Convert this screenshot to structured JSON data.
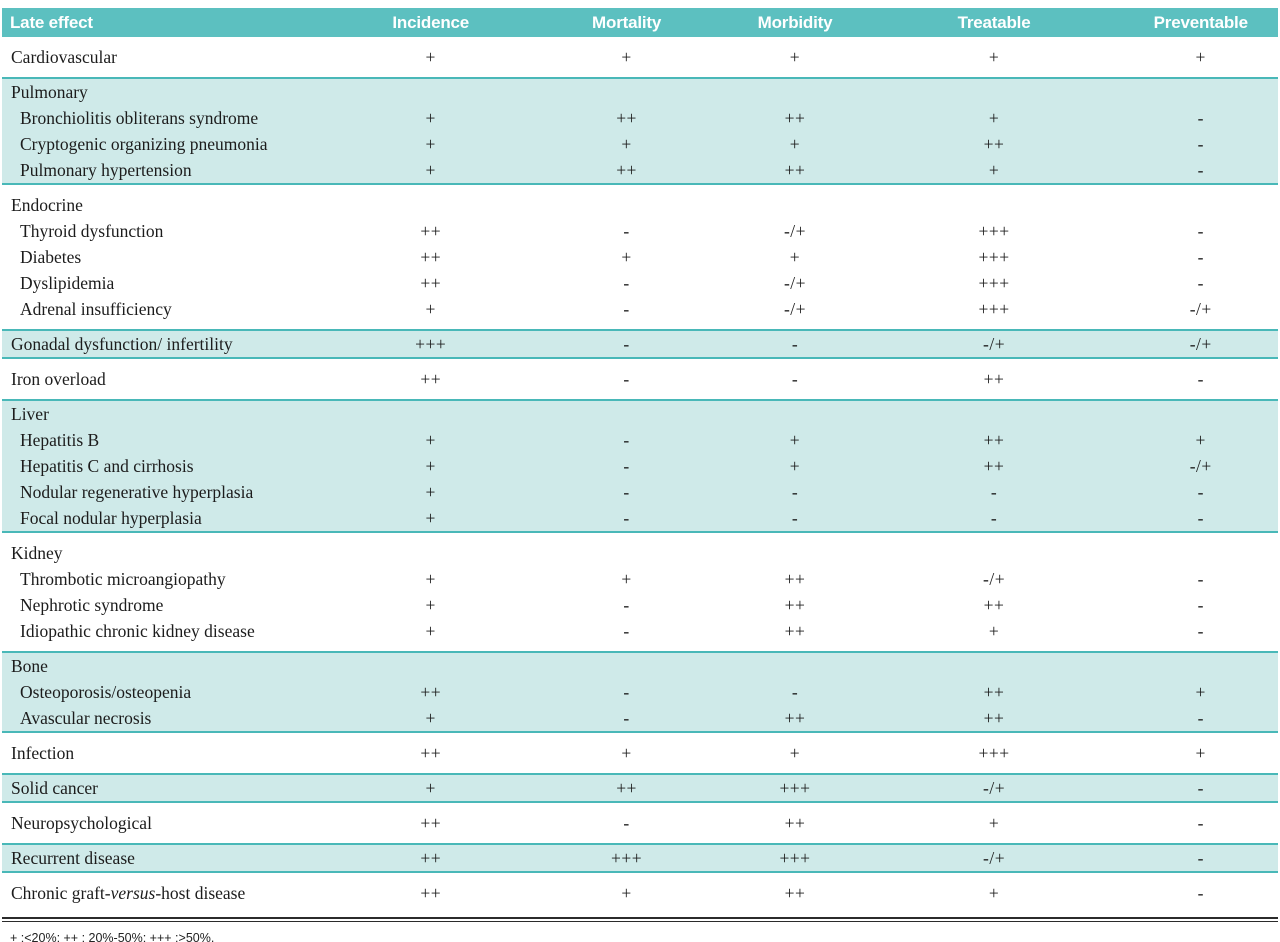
{
  "colors": {
    "header_teal": "#5cc0c0",
    "row_teal": "#cfeae9",
    "rule_teal": "#49b8b8",
    "text": "#1c1c1c",
    "header_text": "#ffffff"
  },
  "table": {
    "columns": [
      "Late effect",
      "Incidence",
      "Mortality",
      "Morbidity",
      "Treatable",
      "Preventable"
    ],
    "sections": [
      {
        "bg": "white",
        "rows": [
          {
            "label": "Cardiovascular",
            "indent": false,
            "values": [
              "+",
              "+",
              "+",
              "+",
              "+"
            ]
          }
        ]
      },
      {
        "bg": "teal",
        "rows": [
          {
            "label": "Pulmonary",
            "indent": false
          },
          {
            "label": "Bronchiolitis obliterans syndrome",
            "indent": true,
            "values": [
              "+",
              "++",
              "++",
              "+",
              "-"
            ]
          },
          {
            "label": "Cryptogenic organizing pneumonia",
            "indent": true,
            "values": [
              "+",
              "+",
              "+",
              "++",
              "-"
            ]
          },
          {
            "label": "Pulmonary hypertension",
            "indent": true,
            "values": [
              "+",
              "++",
              "++",
              "+",
              "-"
            ]
          }
        ]
      },
      {
        "bg": "white",
        "rows": [
          {
            "label": "Endocrine",
            "indent": false
          },
          {
            "label": "Thyroid dysfunction",
            "indent": true,
            "values": [
              "++",
              "-",
              "-/+",
              "+++",
              "-"
            ]
          },
          {
            "label": "Diabetes",
            "indent": true,
            "values": [
              "++",
              "+",
              "+",
              "+++",
              "-"
            ]
          },
          {
            "label": "Dyslipidemia",
            "indent": true,
            "values": [
              "++",
              "-",
              "-/+",
              "+++",
              "-"
            ]
          },
          {
            "label": "Adrenal insufficiency",
            "indent": true,
            "values": [
              "+",
              "-",
              "-/+",
              "+++",
              "-/+"
            ]
          }
        ]
      },
      {
        "bg": "teal",
        "rows": [
          {
            "label": "Gonadal dysfunction/ infertility",
            "indent": false,
            "values": [
              "+++",
              "-",
              "-",
              "-/+",
              "-/+"
            ]
          }
        ]
      },
      {
        "bg": "white",
        "rows": [
          {
            "label": "Iron overload",
            "indent": false,
            "values": [
              "++",
              "-",
              "-",
              "++",
              "-"
            ]
          }
        ]
      },
      {
        "bg": "teal",
        "rows": [
          {
            "label": "Liver",
            "indent": false
          },
          {
            "label": "Hepatitis B",
            "indent": true,
            "values": [
              "+",
              "-",
              "+",
              "++",
              "+"
            ]
          },
          {
            "label": "Hepatitis C and cirrhosis",
            "indent": true,
            "values": [
              "+",
              "-",
              "+",
              "++",
              "-/+"
            ]
          },
          {
            "label": "Nodular regenerative hyperplasia",
            "indent": true,
            "values": [
              "+",
              "-",
              "-",
              "-",
              "-"
            ]
          },
          {
            "label": "Focal nodular hyperplasia",
            "indent": true,
            "values": [
              "+",
              "-",
              "-",
              "-",
              "-"
            ]
          }
        ]
      },
      {
        "bg": "white",
        "rows": [
          {
            "label": "Kidney",
            "indent": false
          },
          {
            "label": "Thrombotic microangiopathy",
            "indent": true,
            "values": [
              "+",
              "+",
              "++",
              "-/+",
              "-"
            ]
          },
          {
            "label": "Nephrotic syndrome",
            "indent": true,
            "values": [
              "+",
              "-",
              "++",
              "++",
              "-"
            ]
          },
          {
            "label": "Idiopathic chronic kidney disease",
            "indent": true,
            "values": [
              "+",
              "-",
              "++",
              "+",
              "-"
            ]
          }
        ]
      },
      {
        "bg": "teal",
        "rows": [
          {
            "label": "Bone",
            "indent": false
          },
          {
            "label": "Osteoporosis/osteopenia",
            "indent": true,
            "values": [
              "++",
              "-",
              "-",
              "++",
              "+"
            ]
          },
          {
            "label": "Avascular necrosis",
            "indent": true,
            "values": [
              "+",
              "-",
              "++",
              "++",
              "-"
            ]
          }
        ]
      },
      {
        "bg": "white",
        "rows": [
          {
            "label": "Infection",
            "indent": false,
            "values": [
              "++",
              "+",
              "+",
              "+++",
              "+"
            ]
          }
        ]
      },
      {
        "bg": "teal",
        "rows": [
          {
            "label": "Solid cancer",
            "indent": false,
            "values": [
              "+",
              "++",
              "+++",
              "-/+",
              "-"
            ]
          }
        ]
      },
      {
        "bg": "white",
        "rows": [
          {
            "label": "Neuropsychological",
            "indent": false,
            "values": [
              "++",
              "-",
              "++",
              "+",
              "-"
            ]
          }
        ]
      },
      {
        "bg": "teal",
        "rows": [
          {
            "label": "Recurrent disease",
            "indent": false,
            "values": [
              "++",
              "+++",
              "+++",
              "-/+",
              "-"
            ]
          }
        ]
      },
      {
        "bg": "white",
        "rows": [
          {
            "label": "Chronic graft-*versus*-host disease",
            "indent": false,
            "values": [
              "++",
              "+",
              "++",
              "+",
              "-"
            ]
          }
        ]
      }
    ],
    "footnote": "+ :<20%; ++ : 20%-50%; +++ :>50%."
  }
}
